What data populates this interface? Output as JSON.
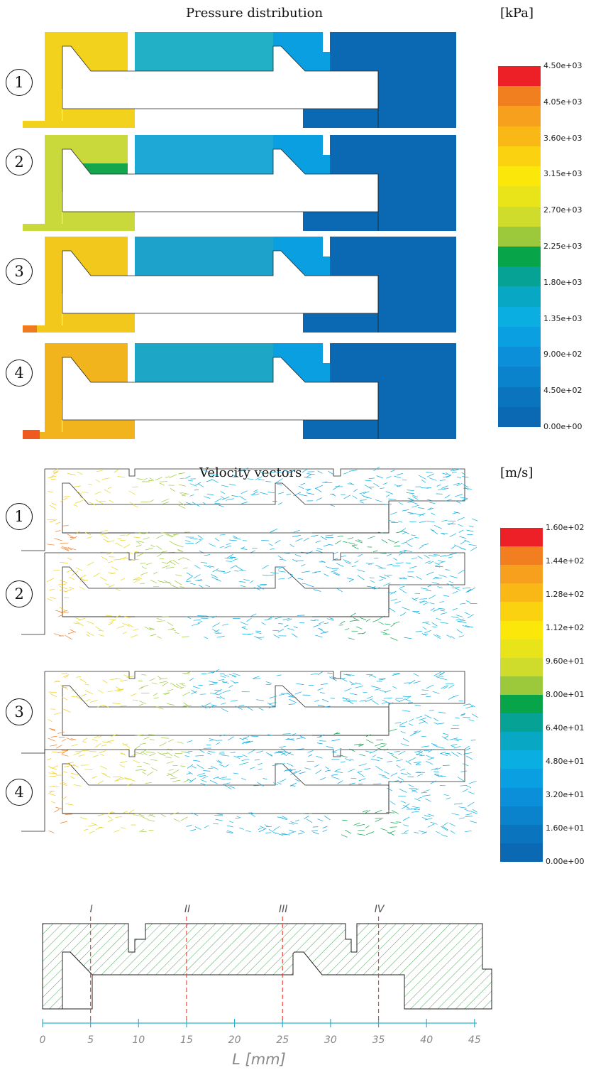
{
  "pressure": {
    "title": "Pressure distribution",
    "unit": "[kPa]",
    "colorbar_ticks": [
      "4.50e+03",
      "4.05e+03",
      "3.60e+03",
      "3.15e+03",
      "2.70e+03",
      "2.25e+03",
      "1.80e+03",
      "1.35e+03",
      "9.00e+02",
      "4.50e+02",
      "0.00e+00"
    ]
  },
  "velocity": {
    "title": "Velocity vectors",
    "unit": "[m/s]",
    "colorbar_ticks": [
      "1.60e+02",
      "1.44e+02",
      "1.28e+02",
      "1.12e+02",
      "9.60e+01",
      "8.00e+01",
      "6.40e+01",
      "4.80e+01",
      "3.20e+01",
      "1.60e+01",
      "0.00e+00"
    ]
  },
  "cases": [
    "1",
    "2",
    "3",
    "4"
  ],
  "colormap": [
    "#ee2027",
    "#f27f1f",
    "#f6a01d",
    "#f9b816",
    "#fbd20f",
    "#fbe80a",
    "#e9e41a",
    "#cfdc2c",
    "#9cc93c",
    "#08a44a",
    "#07a296",
    "#08a8c4",
    "#0aaee0",
    "#0a9fe0",
    "#0b8fd8",
    "#0b82cc",
    "#0b74bf",
    "#0b68b2"
  ],
  "geometry_section": {
    "section_labels": [
      "I",
      "II",
      "III",
      "IV"
    ],
    "section_positions_mm": [
      5,
      15,
      25,
      35
    ],
    "axis_ticks": [
      "0",
      "5",
      "10",
      "15",
      "20",
      "25",
      "30",
      "35",
      "40",
      "45"
    ],
    "axis_label": "L  [mm]",
    "colors": {
      "hatch": "#3c9a4a",
      "section_line": "#e8483c",
      "axis": "#2fb0cf"
    }
  }
}
